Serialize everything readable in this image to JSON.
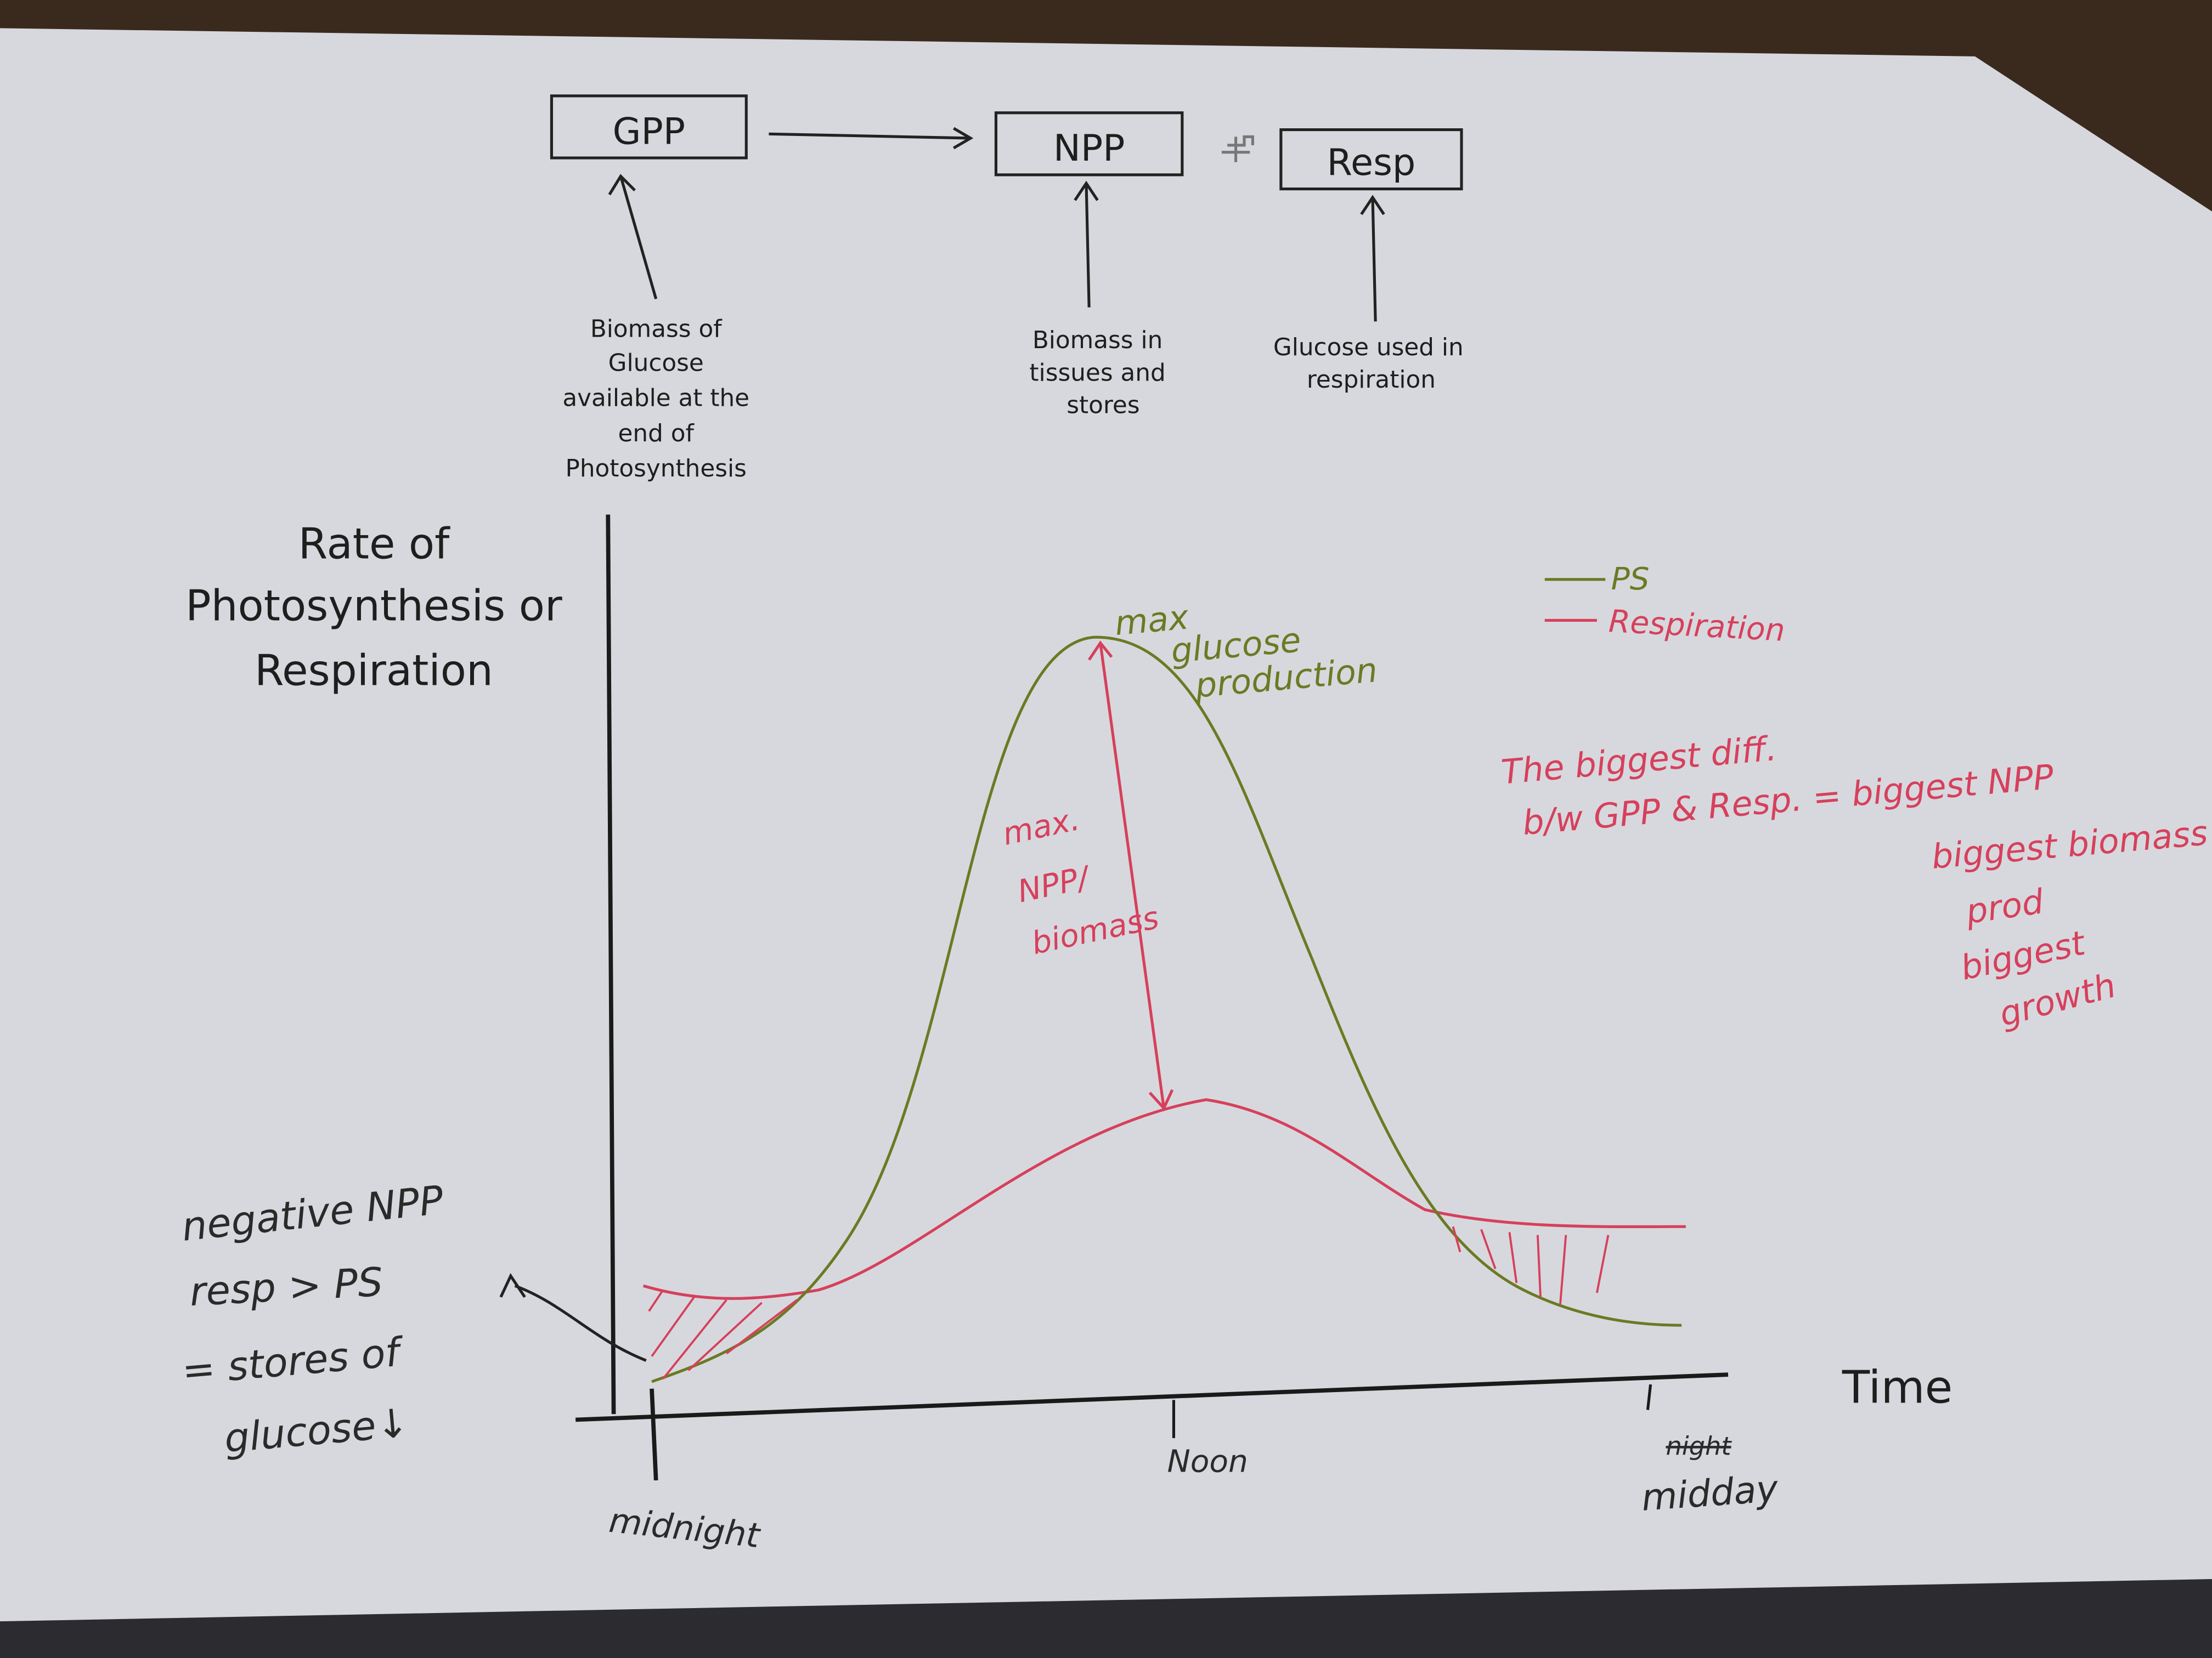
{
  "flow": {
    "boxes": [
      "GPP",
      "NPP",
      "Resp"
    ],
    "notes": [
      [
        "Biomass of",
        "Glucose",
        "available at the",
        "end of",
        "Photosynthesis"
      ],
      [
        "Biomass in",
        "tissues and",
        "stores"
      ],
      [
        "Glucose used in",
        "respiration"
      ]
    ]
  },
  "graph": {
    "y_label": [
      "Rate of",
      "Photosynthesis or",
      "Respiration"
    ],
    "x_label": "Time",
    "x_ticks": [
      "midnight",
      "Noon",
      "midday"
    ],
    "x_tick_struck": "night",
    "legend": [
      "PS",
      "Respiration"
    ]
  },
  "annotations": {
    "max_glucose": [
      "max",
      "glucose",
      "production"
    ],
    "max_npp": [
      "max.",
      "NPP/",
      "biomass"
    ],
    "biggest_diff": [
      "The biggest diff.",
      "b/w GPP & Resp. = biggest NPP",
      "biggest biomass",
      "prod",
      "biggest",
      "growth"
    ],
    "negative_npp": [
      "negative NPP",
      "resp > PS",
      "= stores of",
      "glucose↓"
    ]
  }
}
